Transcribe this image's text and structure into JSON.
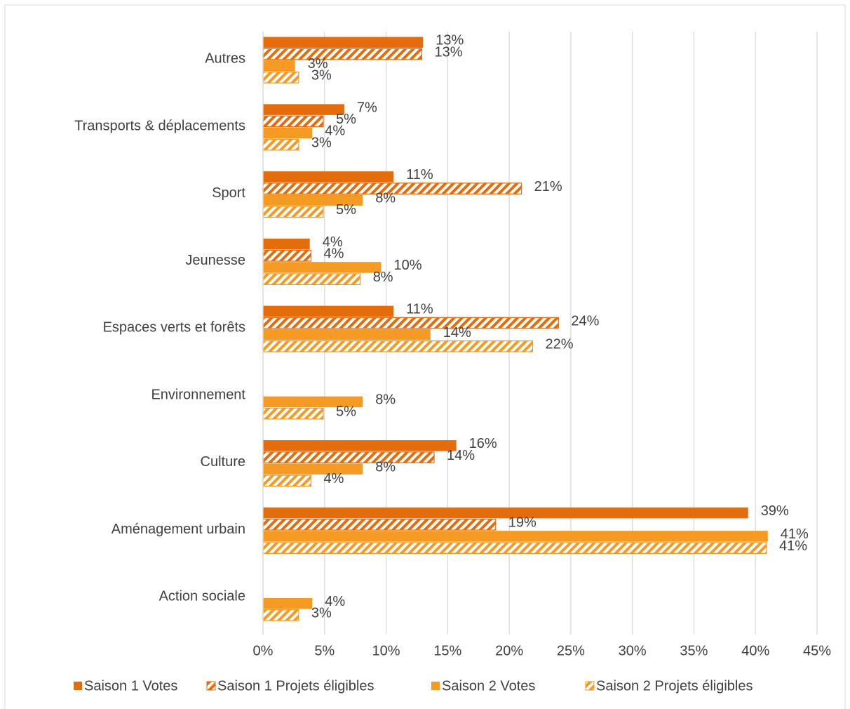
{
  "chart_data": {
    "type": "bar",
    "orientation": "horizontal",
    "categories": [
      "Autres",
      "Transports & déplacements",
      "Sport",
      "Jeunesse",
      "Espaces verts et forêts",
      "Environnement",
      "Culture",
      "Aménagement urbain",
      "Action sociale"
    ],
    "series": [
      {
        "name": "Saison 1 Votes",
        "color": "#e46c0a",
        "hatch": false,
        "values": [
          13.0,
          6.6,
          10.6,
          3.8,
          10.6,
          null,
          15.7,
          39.4,
          null
        ],
        "value_labels": [
          "13%",
          "7%",
          "11%",
          "4%",
          "11%",
          null,
          "16%",
          "39%",
          null
        ]
      },
      {
        "name": "Saison 1 Projets éligibles",
        "color": "#e46c0a",
        "hatch": true,
        "values": [
          12.9,
          4.9,
          21.0,
          3.9,
          24.0,
          null,
          13.9,
          18.9,
          null
        ],
        "value_labels": [
          "13%",
          "5%",
          "21%",
          "4%",
          "24%",
          null,
          "14%",
          "19%",
          null
        ]
      },
      {
        "name": "Saison 2 Votes",
        "color": "#f59a23",
        "hatch": false,
        "values": [
          2.6,
          4.0,
          8.1,
          9.6,
          13.6,
          8.1,
          8.1,
          41.0,
          4.0
        ],
        "value_labels": [
          "3%",
          "4%",
          "8%",
          "10%",
          "14%",
          "8%",
          "8%",
          "41%",
          "4%"
        ]
      },
      {
        "name": "Saison 2 Projets éligibles",
        "color": "#f59a23",
        "hatch": true,
        "values": [
          2.9,
          2.9,
          4.9,
          7.9,
          21.9,
          4.9,
          3.9,
          40.9,
          2.9
        ],
        "value_labels": [
          "3%",
          "3%",
          "5%",
          "8%",
          "22%",
          "5%",
          "4%",
          "41%",
          "3%"
        ]
      }
    ],
    "xlim": [
      0,
      45
    ],
    "xticks": [
      {
        "value": 0,
        "label": "0%"
      },
      {
        "value": 5,
        "label": "5%"
      },
      {
        "value": 10,
        "label": "10%"
      },
      {
        "value": 15,
        "label": "15%"
      },
      {
        "value": 20,
        "label": "20%"
      },
      {
        "value": 25,
        "label": "25%"
      },
      {
        "value": 30,
        "label": "30%"
      },
      {
        "value": 35,
        "label": "35%"
      },
      {
        "value": 40,
        "label": "40%"
      },
      {
        "value": 45,
        "label": "45%"
      }
    ],
    "grid": true,
    "legend": "bottom"
  }
}
